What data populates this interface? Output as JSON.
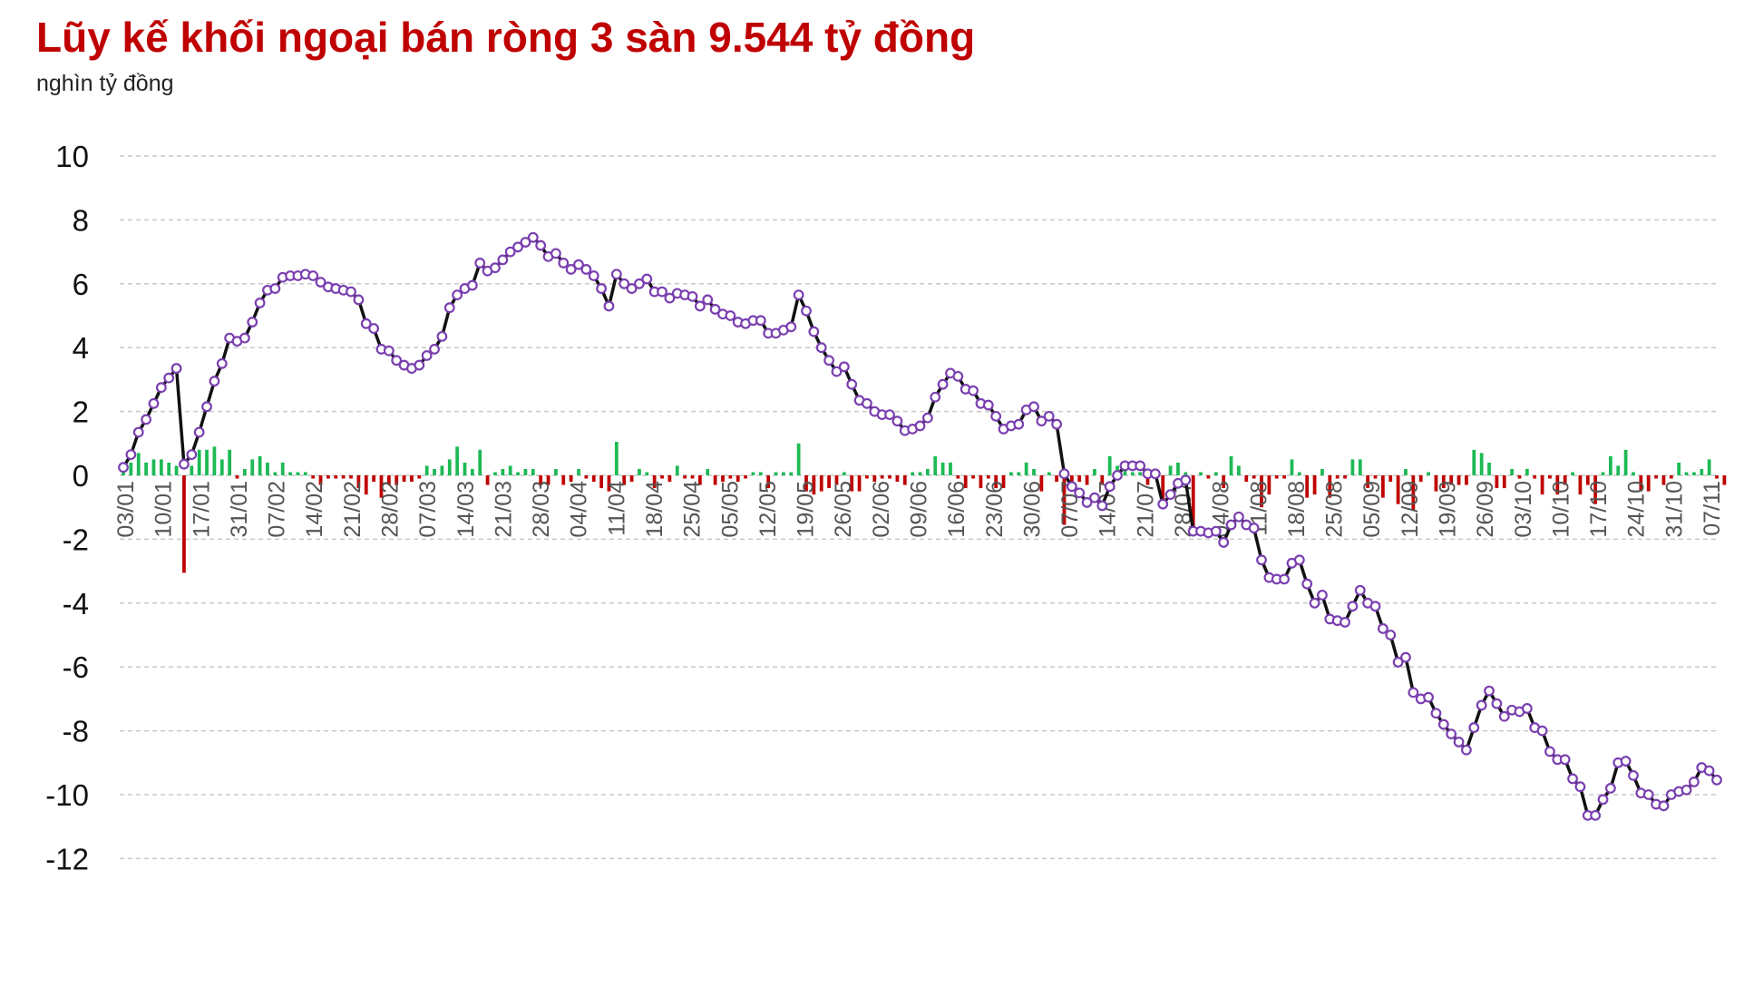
{
  "chart_data": {
    "type": "line",
    "title": "Lũy kế khối ngoại bán ròng 3 sàn 9.544 tỷ đồng",
    "unit": "nghìn tỷ đồng",
    "ylim": [
      -12,
      10
    ],
    "yticks": [
      10,
      8,
      6,
      4,
      2,
      0,
      -2,
      -4,
      -6,
      -8,
      -10,
      -12
    ],
    "grid": true,
    "x_tick_labels": [
      "03/01",
      "10/01",
      "17/01",
      "31/01",
      "07/02",
      "14/02",
      "21/02",
      "28/02",
      "07/03",
      "14/03",
      "21/03",
      "28/03",
      "04/04",
      "11/04",
      "18/04",
      "25/04",
      "05/05",
      "12/05",
      "19/05",
      "26/05",
      "02/06",
      "09/06",
      "16/06",
      "23/06",
      "30/06",
      "07/07",
      "14/07",
      "21/07",
      "28/07",
      "04/08",
      "11/08",
      "18/08",
      "25/08",
      "05/09",
      "12/09",
      "19/09",
      "26/09",
      "03/10",
      "10/10",
      "17/10",
      "24/10",
      "31/10",
      "07/11"
    ],
    "colors": {
      "cumulative_line": "#111111",
      "markers": "#7a3fb0",
      "buy_bars": "#1db954",
      "sell_bars": "#c00000"
    },
    "series": [
      {
        "type": "line",
        "values": [
          0.25,
          0.65,
          1.35,
          1.75,
          2.25,
          2.75,
          3.05,
          3.35,
          0.35,
          0.65,
          1.35,
          2.15,
          2.95,
          3.5,
          4.3,
          4.2,
          4.3,
          4.8,
          5.4,
          5.8,
          5.85,
          6.2,
          6.25,
          6.25,
          6.3,
          6.25,
          6.05,
          5.9,
          5.85,
          5.8,
          5.75,
          5.5,
          4.75,
          4.6,
          3.95,
          3.9,
          3.6,
          3.45,
          3.35,
          3.45,
          3.75,
          3.95,
          4.35,
          5.25,
          5.65,
          5.85,
          5.95,
          6.65,
          6.4,
          6.5,
          6.75,
          7.0,
          7.15,
          7.3,
          7.45,
          7.2,
          6.85,
          6.95,
          6.65,
          6.45,
          6.6,
          6.45,
          6.25,
          5.85,
          5.3,
          6.3,
          6.0,
          5.85,
          6.0,
          6.15,
          5.75,
          5.75,
          5.55,
          5.7,
          5.65,
          5.6,
          5.3,
          5.5,
          5.2,
          5.05,
          5.0,
          4.8,
          4.75,
          4.85,
          4.85,
          4.45,
          4.45,
          4.55,
          4.65,
          5.65,
          5.15,
          4.5,
          4.0,
          3.6,
          3.25,
          3.4,
          2.85,
          2.35,
          2.25,
          2.0,
          1.9,
          1.9,
          1.7,
          1.4,
          1.45,
          1.55,
          1.8,
          2.45,
          2.85,
          3.2,
          3.1,
          2.7,
          2.65,
          2.25,
          2.2,
          1.85,
          1.45,
          1.55,
          1.6,
          2.05,
          2.15,
          1.7,
          1.85,
          1.6,
          0.05,
          -0.35,
          -0.55,
          -0.85,
          -0.7,
          -0.95,
          -0.35,
          0.0,
          0.3,
          0.3,
          0.3,
          0.05,
          0.05,
          -0.9,
          -0.6,
          -0.25,
          -0.15,
          -1.75,
          -1.75,
          -1.8,
          -1.75,
          -2.1,
          -1.55,
          -1.3,
          -1.55,
          -1.65,
          -2.65,
          -3.2,
          -3.25,
          -3.25,
          -2.75,
          -2.65,
          -3.4,
          -4.0,
          -3.75,
          -4.5,
          -4.55,
          -4.6,
          -4.1,
          -3.6,
          -4.0,
          -4.1,
          -4.8,
          -5.0,
          -5.85,
          -5.7,
          -6.8,
          -7.0,
          -6.95,
          -7.45,
          -7.8,
          -8.1,
          -8.35,
          -8.6,
          -7.9,
          -7.2,
          -6.75,
          -7.15,
          -7.55,
          -7.35,
          -7.4,
          -7.3,
          -7.9,
          -8.0,
          -8.65,
          -8.9,
          -8.9,
          -9.5,
          -9.75,
          -10.65,
          -10.65,
          -10.15,
          -9.8,
          -9.0,
          -8.95,
          -9.4,
          -9.95,
          -10.0,
          -10.3,
          -10.35,
          -10.0,
          -9.9,
          -9.85,
          -9.6,
          -9.15,
          -9.25,
          -9.54
        ]
      },
      {
        "type": "bar",
        "values": [
          0.3,
          0.4,
          0.7,
          0.4,
          0.5,
          0.5,
          0.4,
          0.3,
          -3.05,
          0.3,
          0.8,
          0.8,
          0.9,
          0.5,
          0.8,
          -0.1,
          0.2,
          0.5,
          0.6,
          0.4,
          0.1,
          0.4,
          0.1,
          0.1,
          0.1,
          -0.1,
          -0.3,
          -0.1,
          -0.1,
          -0.1,
          -0.1,
          -0.4,
          -0.6,
          -0.2,
          -0.7,
          -0.3,
          -0.3,
          -0.2,
          -0.2,
          -0.1,
          0.3,
          0.2,
          0.3,
          0.5,
          0.9,
          0.4,
          0.2,
          0.8,
          -0.3,
          0.1,
          0.2,
          0.3,
          0.1,
          0.2,
          0.2,
          -0.3,
          -0.3,
          0.2,
          -0.3,
          -0.2,
          0.2,
          -0.1,
          -0.2,
          -0.4,
          -0.5,
          1.05,
          -0.3,
          -0.2,
          0.2,
          0.1,
          -0.4,
          -0.1,
          -0.2,
          0.3,
          -0.1,
          -0.1,
          -0.3,
          0.2,
          -0.3,
          -0.2,
          -0.1,
          -0.2,
          -0.1,
          0.1,
          0.1,
          -0.4,
          0.1,
          0.1,
          0.1,
          1.0,
          -0.5,
          -0.6,
          -0.5,
          -0.4,
          -0.3,
          0.1,
          -0.5,
          -0.5,
          -0.1,
          -0.2,
          -0.1,
          -0.1,
          -0.2,
          -0.3,
          0.1,
          0.1,
          0.2,
          0.6,
          0.4,
          0.4,
          -0.1,
          -0.4,
          -0.1,
          -0.4,
          -0.1,
          -0.4,
          -0.4,
          0.1,
          0.1,
          0.4,
          0.2,
          -0.5,
          0.1,
          -0.2,
          -1.55,
          -0.4,
          -0.2,
          -0.3,
          0.2,
          -0.3,
          0.6,
          0.3,
          0.3,
          0.1,
          0.1,
          -0.3,
          -0.1,
          -0.9,
          0.3,
          0.4,
          0.1,
          -1.65,
          0.1,
          -0.1,
          0.1,
          -0.4,
          0.6,
          0.3,
          -0.2,
          -0.1,
          -1.0,
          -0.6,
          -0.1,
          -0.1,
          0.5,
          0.1,
          -0.7,
          -0.6,
          0.2,
          -0.7,
          -0.1,
          -0.1,
          0.5,
          0.5,
          -0.4,
          -0.1,
          -0.7,
          -0.2,
          -0.9,
          0.2,
          -1.1,
          -0.2,
          0.1,
          -0.5,
          -0.4,
          -0.3,
          -0.3,
          -0.3,
          0.8,
          0.7,
          0.4,
          -0.4,
          -0.4,
          0.2,
          -0.1,
          0.2,
          -0.1,
          -0.6,
          -0.1,
          -0.6,
          -0.3,
          0.1,
          -0.6,
          -0.3,
          -0.9,
          0.1,
          0.6,
          0.3,
          0.8,
          0.1,
          -0.5,
          -0.5,
          -0.1,
          -0.3,
          -0.1,
          0.4,
          0.1,
          0.1,
          0.2,
          0.5,
          -0.1,
          -0.3
        ]
      }
    ]
  }
}
